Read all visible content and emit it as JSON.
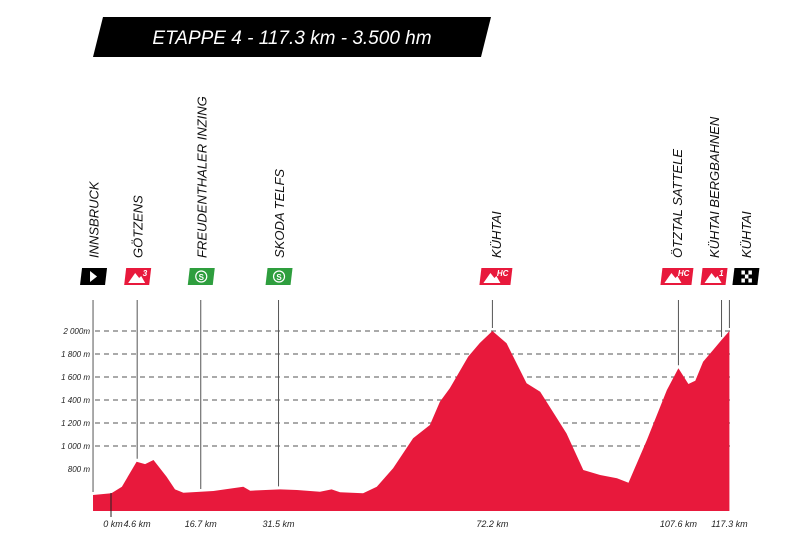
{
  "title": "ETAPPE 4 - 117.3 km - 3.500 hm",
  "colors": {
    "profile": "#e8193c",
    "sprint": "#2e9e3e",
    "start_finish": "#000000",
    "banner": "#000000"
  },
  "chart_data": {
    "type": "area",
    "title": "ETAPPE 4 - 117.3 km - 3.500 hm",
    "xlabel": "",
    "ylabel": "",
    "xlim": [
      -3.8,
      117.3
    ],
    "ylim": [
      430,
      2000
    ],
    "grid": true,
    "y_ticks": [
      {
        "value": 2000,
        "label": "2 000m",
        "dashed": true
      },
      {
        "value": 1800,
        "label": "1 800 m",
        "dashed": true
      },
      {
        "value": 1600,
        "label": "1 600 m",
        "dashed": true
      },
      {
        "value": 1400,
        "label": "1 400 m",
        "dashed": true
      },
      {
        "value": 1200,
        "label": "1 200 m",
        "dashed": true
      },
      {
        "value": 1000,
        "label": "1 000 m",
        "dashed": true
      },
      {
        "value": 800,
        "label": "800 m",
        "dashed": false
      }
    ],
    "x_ticks": [
      {
        "value": 0,
        "label": "0 km"
      },
      {
        "value": 4.6,
        "label": "4.6 km"
      },
      {
        "value": 16.7,
        "label": "16.7 km"
      },
      {
        "value": 31.5,
        "label": "31.5 km"
      },
      {
        "value": 72.2,
        "label": "72.2 km"
      },
      {
        "value": 107.6,
        "label": "107.6 km"
      },
      {
        "value": 117.3,
        "label": "117.3 km"
      }
    ],
    "profile": {
      "km": [
        -3.8,
        -0.3,
        1.7,
        4.5,
        6.1,
        7.7,
        10.2,
        11.8,
        13.4,
        19.1,
        24.8,
        26.1,
        31.8,
        35.0,
        39.4,
        41.6,
        43.2,
        47.6,
        50.2,
        53.3,
        57.1,
        60.3,
        62.2,
        64.1,
        67.6,
        69.8,
        72.2,
        74.9,
        78.7,
        81.3,
        86.3,
        89.5,
        92.7,
        95.9,
        98.1,
        101.6,
        105.4,
        107.6,
        109.5,
        110.8,
        112.3,
        114.2,
        115.8,
        117.3
      ],
      "elevation_m": [
        574,
        589,
        646,
        863,
        843,
        878,
        733,
        623,
        594,
        609,
        646,
        611,
        623,
        617,
        603,
        623,
        597,
        589,
        646,
        806,
        1067,
        1183,
        1385,
        1502,
        1777,
        1896,
        2000,
        1893,
        1545,
        1472,
        1110,
        791,
        748,
        719,
        681,
        1052,
        1487,
        1676,
        1539,
        1568,
        1733,
        1835,
        1922,
        2000
      ]
    },
    "markers": [
      {
        "name": "INNSBRUCK",
        "km": -3.8,
        "elevation_m": 574,
        "badge": "start",
        "badge_text": ""
      },
      {
        "name": "GÖTZENS",
        "km": 4.6,
        "elevation_m": 863,
        "badge": "climb",
        "badge_text": "3"
      },
      {
        "name": "FREUDENTHALER INZING",
        "km": 16.7,
        "elevation_m": 600,
        "badge": "sprint",
        "badge_text": "S"
      },
      {
        "name": "SKODA TELFS",
        "km": 31.5,
        "elevation_m": 623,
        "badge": "sprint",
        "badge_text": "S"
      },
      {
        "name": "KÜHTAI",
        "km": 72.2,
        "elevation_m": 2000,
        "badge": "climb",
        "badge_text": "HC"
      },
      {
        "name": "ÖTZTAL SATTELE",
        "km": 107.6,
        "elevation_m": 1676,
        "badge": "climb",
        "badge_text": "HC"
      },
      {
        "name": "KÜHTAI BERGBAHNEN",
        "km": 115.8,
        "elevation_m": 1922,
        "badge": "climb",
        "badge_text": "1"
      },
      {
        "name": "KÜHTAI",
        "km": 117.3,
        "elevation_m": 2000,
        "badge": "finish",
        "badge_text": ""
      }
    ]
  }
}
